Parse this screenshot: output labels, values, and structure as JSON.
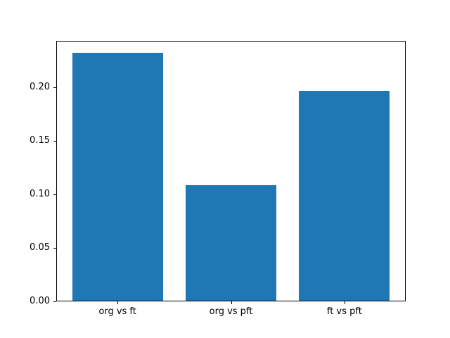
{
  "figure": {
    "background_color": "#ffffff",
    "axis_color": "#000000",
    "bar_color": "#1f77b4"
  },
  "chart_data": {
    "type": "bar",
    "categories": [
      "org vs ft",
      "org vs pft",
      "ft vs pft"
    ],
    "values": [
      0.232,
      0.108,
      0.196
    ],
    "title": "",
    "xlabel": "",
    "ylabel": "",
    "ylim": [
      0,
      0.2436
    ],
    "yticks": [
      {
        "value": 0.0,
        "label": "0.00"
      },
      {
        "value": 0.05,
        "label": "0.05"
      },
      {
        "value": 0.1,
        "label": "0.10"
      },
      {
        "value": 0.15,
        "label": "0.15"
      },
      {
        "value": 0.2,
        "label": "0.20"
      }
    ],
    "grid": false,
    "legend": "none"
  }
}
